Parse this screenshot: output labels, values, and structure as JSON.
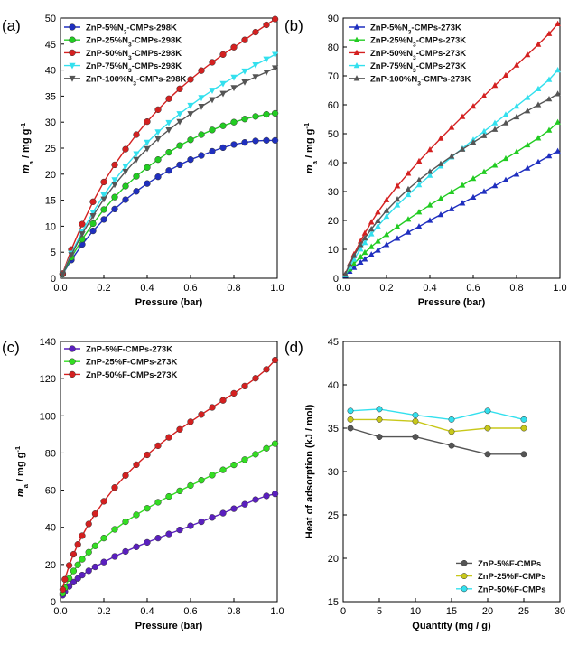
{
  "chart_data": [
    {
      "panel": "(a)",
      "type": "line",
      "xlabel": "Pressure (bar)",
      "ylabel": "m_a / mg g^-1",
      "xlim": [
        0,
        1.0
      ],
      "ylim": [
        0,
        50
      ],
      "xticks": [
        "0.0",
        "0.2",
        "0.4",
        "0.6",
        "0.8",
        "1.0"
      ],
      "yticks": [
        "0",
        "5",
        "10",
        "15",
        "20",
        "25",
        "30",
        "35",
        "40",
        "45",
        "50"
      ],
      "legend_position": "top-left",
      "series": [
        {
          "name": "ZnP-5%N3-CMPs-298K",
          "color": "#1f2fbf",
          "marker": "circle",
          "x": [
            0.01,
            0.05,
            0.1,
            0.15,
            0.2,
            0.25,
            0.3,
            0.35,
            0.4,
            0.45,
            0.5,
            0.55,
            0.6,
            0.65,
            0.7,
            0.75,
            0.8,
            0.85,
            0.9,
            0.95,
            0.99
          ],
          "y": [
            0.8,
            3.5,
            6.5,
            9.1,
            11.3,
            13.3,
            15.1,
            16.7,
            18.2,
            19.5,
            20.7,
            21.8,
            22.8,
            23.6,
            24.4,
            25.1,
            25.7,
            26.1,
            26.4,
            26.5,
            26.5
          ]
        },
        {
          "name": "ZnP-25%N3-CMPs-298K",
          "color": "#22cc22",
          "marker": "circle",
          "x": [
            0.01,
            0.05,
            0.1,
            0.15,
            0.2,
            0.25,
            0.3,
            0.35,
            0.4,
            0.45,
            0.5,
            0.55,
            0.6,
            0.65,
            0.7,
            0.75,
            0.8,
            0.85,
            0.9,
            0.95,
            0.99
          ],
          "y": [
            0.8,
            4.0,
            7.5,
            10.5,
            13.2,
            15.6,
            17.7,
            19.6,
            21.3,
            22.8,
            24.2,
            25.5,
            26.6,
            27.6,
            28.5,
            29.3,
            30.0,
            30.6,
            31.1,
            31.5,
            31.7
          ]
        },
        {
          "name": "ZnP-50%N3-CMPs-298K",
          "color": "#d42020",
          "marker": "circle",
          "x": [
            0.01,
            0.05,
            0.1,
            0.15,
            0.2,
            0.25,
            0.3,
            0.35,
            0.4,
            0.45,
            0.5,
            0.55,
            0.6,
            0.65,
            0.7,
            0.75,
            0.8,
            0.85,
            0.9,
            0.95,
            0.99
          ],
          "y": [
            0.9,
            5.5,
            10.4,
            14.7,
            18.5,
            21.8,
            24.8,
            27.6,
            30.1,
            32.4,
            34.5,
            36.4,
            38.2,
            39.9,
            41.5,
            43.0,
            44.4,
            45.8,
            47.3,
            48.7,
            49.8
          ]
        },
        {
          "name": "ZnP-75%N3-CMPs-298K",
          "color": "#33e0ee",
          "marker": "triangle-down",
          "x": [
            0.01,
            0.05,
            0.1,
            0.15,
            0.2,
            0.25,
            0.3,
            0.35,
            0.4,
            0.45,
            0.5,
            0.55,
            0.6,
            0.65,
            0.7,
            0.75,
            0.8,
            0.85,
            0.9,
            0.95,
            0.99
          ],
          "y": [
            0.8,
            4.8,
            9.0,
            12.7,
            16.0,
            18.9,
            21.5,
            23.9,
            26.1,
            28.1,
            29.9,
            31.6,
            33.2,
            34.7,
            36.1,
            37.4,
            38.6,
            39.8,
            41.0,
            42.1,
            43.0
          ]
        },
        {
          "name": "ZnP-100%N3-CMPs-298K",
          "color": "#555555",
          "marker": "triangle-down",
          "x": [
            0.01,
            0.05,
            0.1,
            0.15,
            0.2,
            0.25,
            0.3,
            0.35,
            0.4,
            0.45,
            0.5,
            0.55,
            0.6,
            0.65,
            0.7,
            0.75,
            0.8,
            0.85,
            0.9,
            0.95,
            0.99
          ],
          "y": [
            0.8,
            4.5,
            8.5,
            12.0,
            15.2,
            18.0,
            20.5,
            22.8,
            24.9,
            26.8,
            28.5,
            30.1,
            31.6,
            33.0,
            34.3,
            35.5,
            36.6,
            37.7,
            38.7,
            39.6,
            40.4
          ]
        }
      ]
    },
    {
      "panel": "(b)",
      "type": "line",
      "xlabel": "Pressure (bar)",
      "ylabel": "m_a / mg g^-1",
      "xlim": [
        0,
        1.0
      ],
      "ylim": [
        0,
        90
      ],
      "xticks": [
        "0.0",
        "0.2",
        "0.4",
        "0.6",
        "0.8",
        "1.0"
      ],
      "yticks": [
        "0",
        "10",
        "20",
        "30",
        "40",
        "50",
        "60",
        "70",
        "80",
        "90"
      ],
      "legend_position": "top-left",
      "series": [
        {
          "name": "ZnP-5%N3-CMPs-273K",
          "color": "#1f2fbf",
          "marker": "triangle-up",
          "x": [
            0.01,
            0.03,
            0.05,
            0.08,
            0.1,
            0.13,
            0.16,
            0.2,
            0.25,
            0.3,
            0.35,
            0.4,
            0.45,
            0.5,
            0.55,
            0.6,
            0.65,
            0.7,
            0.75,
            0.8,
            0.85,
            0.9,
            0.95,
            0.99
          ],
          "y": [
            1.0,
            2.4,
            3.7,
            5.5,
            6.6,
            8.2,
            9.7,
            11.6,
            13.8,
            15.9,
            17.9,
            20.0,
            22.0,
            24.0,
            26.0,
            28.0,
            30.0,
            32.0,
            34.0,
            36.0,
            38.1,
            40.2,
            42.3,
            44.0
          ]
        },
        {
          "name": "ZnP-25%N3-CMPs-273K",
          "color": "#22cc22",
          "marker": "triangle-up",
          "x": [
            0.01,
            0.03,
            0.05,
            0.08,
            0.1,
            0.13,
            0.16,
            0.2,
            0.25,
            0.3,
            0.35,
            0.4,
            0.45,
            0.5,
            0.55,
            0.6,
            0.65,
            0.7,
            0.75,
            0.8,
            0.85,
            0.9,
            0.95,
            0.99
          ],
          "y": [
            1.2,
            3.2,
            5.0,
            7.4,
            8.9,
            10.9,
            12.8,
            15.1,
            17.8,
            20.4,
            22.9,
            25.3,
            27.6,
            29.9,
            32.2,
            34.5,
            36.8,
            39.1,
            41.4,
            43.7,
            46.1,
            48.5,
            51.2,
            54.0
          ]
        },
        {
          "name": "ZnP-50%N3-CMPs-273K",
          "color": "#d42020",
          "marker": "triangle-up",
          "x": [
            0.01,
            0.03,
            0.05,
            0.08,
            0.1,
            0.13,
            0.16,
            0.2,
            0.25,
            0.3,
            0.35,
            0.4,
            0.45,
            0.5,
            0.55,
            0.6,
            0.65,
            0.7,
            0.75,
            0.8,
            0.85,
            0.9,
            0.95,
            0.99
          ],
          "y": [
            1.5,
            5.0,
            8.3,
            12.8,
            15.6,
            19.4,
            22.9,
            27.1,
            31.9,
            36.3,
            40.5,
            44.5,
            48.4,
            52.2,
            55.9,
            59.5,
            63.1,
            66.7,
            70.2,
            73.7,
            77.3,
            80.9,
            84.6,
            88.0
          ]
        },
        {
          "name": "ZnP-75%N3-CMPs-273K",
          "color": "#33e0ee",
          "marker": "triangle-up",
          "x": [
            0.01,
            0.03,
            0.05,
            0.08,
            0.1,
            0.13,
            0.16,
            0.2,
            0.25,
            0.3,
            0.35,
            0.4,
            0.45,
            0.5,
            0.55,
            0.6,
            0.65,
            0.7,
            0.75,
            0.8,
            0.85,
            0.9,
            0.95,
            0.99
          ],
          "y": [
            1.2,
            4.0,
            6.6,
            10.1,
            12.3,
            15.3,
            18.0,
            21.4,
            25.3,
            28.9,
            32.3,
            35.6,
            38.8,
            41.9,
            44.9,
            47.9,
            50.8,
            53.7,
            56.6,
            59.5,
            62.5,
            65.5,
            68.7,
            72.0
          ]
        },
        {
          "name": "ZnP-100%N3-CMPs-273K",
          "color": "#555555",
          "marker": "triangle-up",
          "x": [
            0.01,
            0.03,
            0.05,
            0.08,
            0.1,
            0.13,
            0.16,
            0.2,
            0.25,
            0.3,
            0.35,
            0.4,
            0.45,
            0.5,
            0.55,
            0.6,
            0.65,
            0.7,
            0.75,
            0.8,
            0.85,
            0.9,
            0.95,
            0.99
          ],
          "y": [
            1.4,
            4.8,
            7.8,
            11.6,
            13.9,
            17.0,
            19.9,
            23.4,
            27.3,
            30.8,
            34.0,
            36.9,
            39.6,
            42.2,
            44.6,
            47.0,
            49.3,
            51.5,
            53.7,
            55.8,
            57.9,
            60.0,
            62.0,
            63.8
          ]
        }
      ]
    },
    {
      "panel": "(c)",
      "type": "line",
      "xlabel": "Pressure (bar)",
      "ylabel": "m_a / mg g^-1",
      "xlim": [
        0,
        1.0
      ],
      "ylim": [
        0,
        140
      ],
      "xticks": [
        "0.0",
        "0.2",
        "0.4",
        "0.6",
        "0.8",
        "1.0"
      ],
      "yticks": [
        "0",
        "20",
        "40",
        "60",
        "80",
        "100",
        "120",
        "140"
      ],
      "legend_position": "top-left",
      "series": [
        {
          "name": "ZnP-5%F-CMPs-273K",
          "color": "#5a1fbf",
          "marker": "circle",
          "x": [
            0.01,
            0.02,
            0.04,
            0.06,
            0.08,
            0.1,
            0.13,
            0.16,
            0.2,
            0.25,
            0.3,
            0.35,
            0.4,
            0.45,
            0.5,
            0.55,
            0.6,
            0.65,
            0.7,
            0.75,
            0.8,
            0.85,
            0.9,
            0.95,
            0.99
          ],
          "y": [
            3.5,
            5.5,
            8.2,
            10.5,
            12.5,
            14.3,
            16.6,
            18.7,
            21.3,
            24.3,
            27.0,
            29.5,
            31.9,
            34.2,
            36.4,
            38.6,
            40.8,
            43.0,
            45.3,
            47.6,
            50.0,
            52.4,
            54.9,
            56.9,
            58.0
          ]
        },
        {
          "name": "ZnP-25%F-CMPs-273K",
          "color": "#33dd22",
          "marker": "circle",
          "x": [
            0.01,
            0.02,
            0.04,
            0.06,
            0.08,
            0.1,
            0.13,
            0.16,
            0.2,
            0.25,
            0.3,
            0.35,
            0.4,
            0.45,
            0.5,
            0.55,
            0.6,
            0.65,
            0.7,
            0.75,
            0.8,
            0.85,
            0.9,
            0.95,
            0.99
          ],
          "y": [
            4.5,
            7.5,
            12.5,
            16.5,
            19.8,
            22.8,
            26.6,
            30.0,
            34.2,
            38.9,
            43.0,
            46.7,
            50.2,
            53.5,
            56.6,
            59.6,
            62.5,
            65.3,
            68.1,
            70.9,
            73.6,
            76.4,
            79.3,
            82.5,
            85.0
          ]
        },
        {
          "name": "ZnP-50%F-CMPs-273K",
          "color": "#d42020",
          "marker": "circle",
          "x": [
            0.01,
            0.02,
            0.04,
            0.06,
            0.08,
            0.1,
            0.13,
            0.16,
            0.2,
            0.25,
            0.3,
            0.35,
            0.4,
            0.45,
            0.5,
            0.55,
            0.6,
            0.65,
            0.7,
            0.75,
            0.8,
            0.85,
            0.9,
            0.95,
            0.99
          ],
          "y": [
            6.5,
            12.0,
            19.5,
            25.5,
            30.8,
            35.5,
            41.8,
            47.3,
            54.0,
            61.4,
            67.9,
            73.7,
            79.0,
            83.9,
            88.4,
            92.7,
            96.8,
            100.7,
            104.5,
            108.3,
            112.1,
            116.0,
            120.2,
            125.0,
            130.0
          ]
        }
      ]
    },
    {
      "panel": "(d)",
      "type": "line",
      "xlabel": "Quantity (mg / g)",
      "ylabel": "Heat of adsorption (kJ / mol)",
      "xlim": [
        0,
        30
      ],
      "ylim": [
        15,
        45
      ],
      "xticks": [
        "0",
        "5",
        "10",
        "15",
        "20",
        "25",
        "30"
      ],
      "yticks": [
        "15",
        "20",
        "25",
        "30",
        "35",
        "40",
        "45"
      ],
      "legend_position": "bottom-right",
      "series": [
        {
          "name": "ZnP-5%F-CMPs",
          "color": "#555555",
          "marker": "circle",
          "x": [
            1,
            5,
            10,
            15,
            20,
            25
          ],
          "y": [
            35,
            34,
            34,
            33,
            32,
            32
          ]
        },
        {
          "name": "ZnP-25%F-CMPs",
          "color": "#c8c81a",
          "marker": "circle",
          "x": [
            1,
            5,
            10,
            15,
            20,
            25
          ],
          "y": [
            36,
            36,
            35.8,
            34.6,
            35,
            35
          ]
        },
        {
          "name": "ZnP-50%F-CMPs",
          "color": "#33e0ee",
          "marker": "circle",
          "x": [
            1,
            5,
            10,
            15,
            20,
            25
          ],
          "y": [
            37,
            37.2,
            36.5,
            36,
            37,
            36
          ]
        }
      ]
    }
  ]
}
